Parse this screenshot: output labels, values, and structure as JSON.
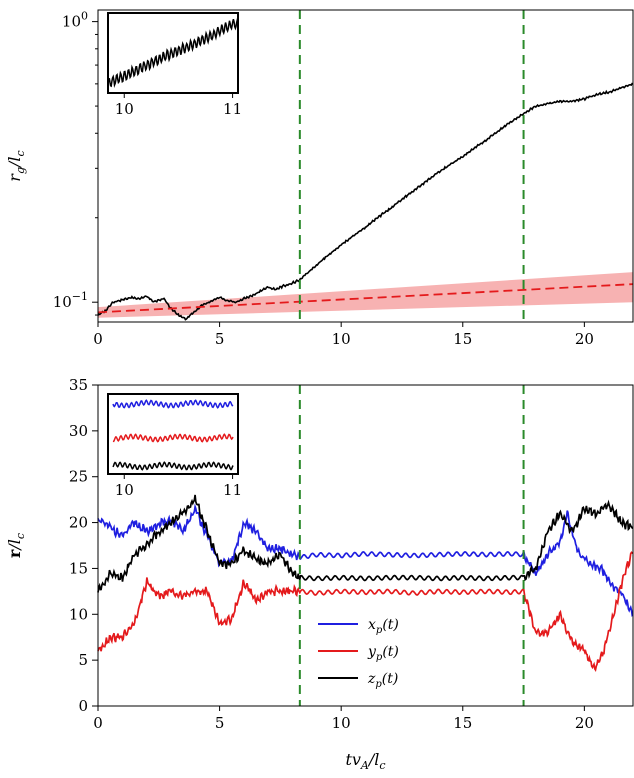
{
  "chart_data": [
    {
      "type": "line",
      "ylabel": "r_g/l_c",
      "yscale": "log",
      "xlim": [
        0,
        22
      ],
      "ylim": [
        0.085,
        1.1
      ],
      "xticks": [
        "0",
        "5",
        "10",
        "15",
        "20"
      ],
      "yticks": [
        {
          "value": 0.1,
          "label": "10^-1"
        },
        {
          "value": 1,
          "label": "10^0"
        }
      ],
      "vlines": [
        8.3,
        17.5
      ],
      "colors": {
        "data": "#000000",
        "fit": "#e41a1c",
        "band": "#f6a5a5",
        "vline": "#2a8a2a"
      },
      "series": [
        {
          "name": "",
          "x": [
            0,
            0.3,
            0.6,
            1.0,
            1.4,
            1.7,
            2.0,
            2.3,
            2.7,
            3.0,
            3.3,
            3.6,
            4.0,
            4.3,
            4.6,
            5.0,
            5.3,
            5.7,
            6.0,
            6.4,
            6.7,
            7.0,
            7.3,
            7.6,
            8.0,
            8.3,
            9.0,
            10.0,
            11.0,
            12.0,
            13.0,
            14.0,
            15.0,
            16.0,
            17.0,
            17.5,
            18.0,
            18.5,
            19.0,
            19.5,
            20.0,
            20.5,
            21.0,
            21.5,
            22.0
          ],
          "y": [
            0.09,
            0.093,
            0.1,
            0.102,
            0.104,
            0.103,
            0.105,
            0.1,
            0.103,
            0.095,
            0.09,
            0.087,
            0.093,
            0.098,
            0.1,
            0.104,
            0.101,
            0.1,
            0.103,
            0.106,
            0.11,
            0.113,
            0.111,
            0.114,
            0.117,
            0.12,
            0.136,
            0.16,
            0.185,
            0.215,
            0.25,
            0.29,
            0.33,
            0.38,
            0.44,
            0.47,
            0.5,
            0.51,
            0.52,
            0.52,
            0.53,
            0.55,
            0.56,
            0.58,
            0.6
          ]
        },
        {
          "name": "",
          "x": [
            0,
            22
          ],
          "y": [
            0.092,
            0.116
          ]
        },
        {
          "name": "",
          "x": [
            0,
            22
          ],
          "y_low": [
            0.088,
            0.1
          ],
          "y_high": [
            0.096,
            0.128
          ]
        }
      ],
      "inset": {
        "xticks": [
          "10",
          "11"
        ],
        "x": [
          9.85,
          10.0,
          10.2,
          10.4,
          10.6,
          10.8,
          11.0
        ],
        "y": [
          0.22,
          0.25,
          0.3,
          0.36,
          0.42,
          0.5,
          0.62
        ]
      }
    },
    {
      "type": "line",
      "xlabel": "tv_A/l_c",
      "ylabel": "r/l_c",
      "xlim": [
        0,
        22
      ],
      "ylim": [
        0,
        35
      ],
      "xticks": [
        "0",
        "5",
        "10",
        "15",
        "20"
      ],
      "yticks": [
        "0",
        "5",
        "10",
        "15",
        "20",
        "25",
        "30",
        "35"
      ],
      "vlines": [
        8.3,
        17.5
      ],
      "legend_position": "lower-center",
      "series": [
        {
          "name": "x_p(t)",
          "color": "#1f1fe0",
          "x": [
            0,
            0.5,
            1.0,
            1.5,
            2.0,
            2.5,
            3.0,
            3.5,
            4.0,
            4.5,
            5.0,
            5.5,
            6.0,
            6.5,
            7.0,
            7.5,
            8.0,
            8.3,
            9.0,
            10,
            11,
            12,
            13,
            14,
            15,
            16,
            17,
            17.5,
            18.0,
            18.5,
            19.0,
            19.3,
            19.7,
            20.2,
            20.7,
            21.2,
            21.6,
            22.0
          ],
          "y": [
            20.3,
            19.5,
            18.5,
            20.0,
            19.0,
            19.8,
            20.3,
            19.0,
            21.5,
            18.5,
            15.5,
            15.8,
            20.0,
            19.0,
            17.0,
            17.2,
            16.5,
            16.2,
            16.5,
            16.4,
            16.6,
            16.5,
            16.4,
            16.5,
            16.6,
            16.5,
            16.6,
            16.5,
            14.5,
            16.5,
            18.0,
            21.0,
            17.0,
            15.5,
            15.0,
            13.0,
            12.0,
            10.0
          ]
        },
        {
          "name": "y_p(t)",
          "color": "#e41a1c",
          "x": [
            0,
            0.5,
            1.0,
            1.5,
            2.0,
            2.5,
            3.0,
            3.5,
            4.0,
            4.5,
            5.0,
            5.5,
            6.0,
            6.5,
            7.0,
            7.5,
            8.0,
            8.3,
            9.0,
            10,
            11,
            12,
            13,
            14,
            15,
            16,
            17,
            17.5,
            18.0,
            18.5,
            19.0,
            19.5,
            20.0,
            20.4,
            20.8,
            21.2,
            21.6,
            22.0
          ],
          "y": [
            6.0,
            7.5,
            7.5,
            9.0,
            13.5,
            12.0,
            12.5,
            12.0,
            12.5,
            12.5,
            9.0,
            9.5,
            13.5,
            11.5,
            12.5,
            12.5,
            12.5,
            12.5,
            12.3,
            12.5,
            12.4,
            12.5,
            12.3,
            12.5,
            12.4,
            12.5,
            12.4,
            12.5,
            8.0,
            8.0,
            10.0,
            7.0,
            6.0,
            4.0,
            6.0,
            10.0,
            14.0,
            17.0
          ]
        },
        {
          "name": "z_p(t)",
          "color": "#000000",
          "x": [
            0,
            0.5,
            1.0,
            1.5,
            2.0,
            2.5,
            3.0,
            3.5,
            4.0,
            4.5,
            5.0,
            5.5,
            6.0,
            6.5,
            7.0,
            7.5,
            8.0,
            8.3,
            9.0,
            10,
            11,
            12,
            13,
            14,
            15,
            16,
            17,
            17.5,
            18.0,
            18.5,
            19.0,
            19.5,
            20.0,
            20.5,
            21.0,
            21.5,
            22.0
          ],
          "y": [
            12.5,
            14.5,
            14.0,
            16.5,
            17.5,
            19.0,
            20.0,
            21.0,
            22.5,
            19.0,
            15.5,
            15.5,
            17.0,
            16.0,
            15.5,
            16.5,
            14.5,
            14.0,
            13.9,
            14.0,
            13.9,
            14.0,
            14.0,
            13.9,
            14.0,
            13.9,
            14.0,
            14.0,
            15.0,
            19.0,
            21.0,
            19.0,
            21.5,
            21.0,
            22.0,
            20.0,
            19.5
          ]
        }
      ],
      "inset": {
        "xticks": [
          "10",
          "11"
        ]
      }
    }
  ]
}
